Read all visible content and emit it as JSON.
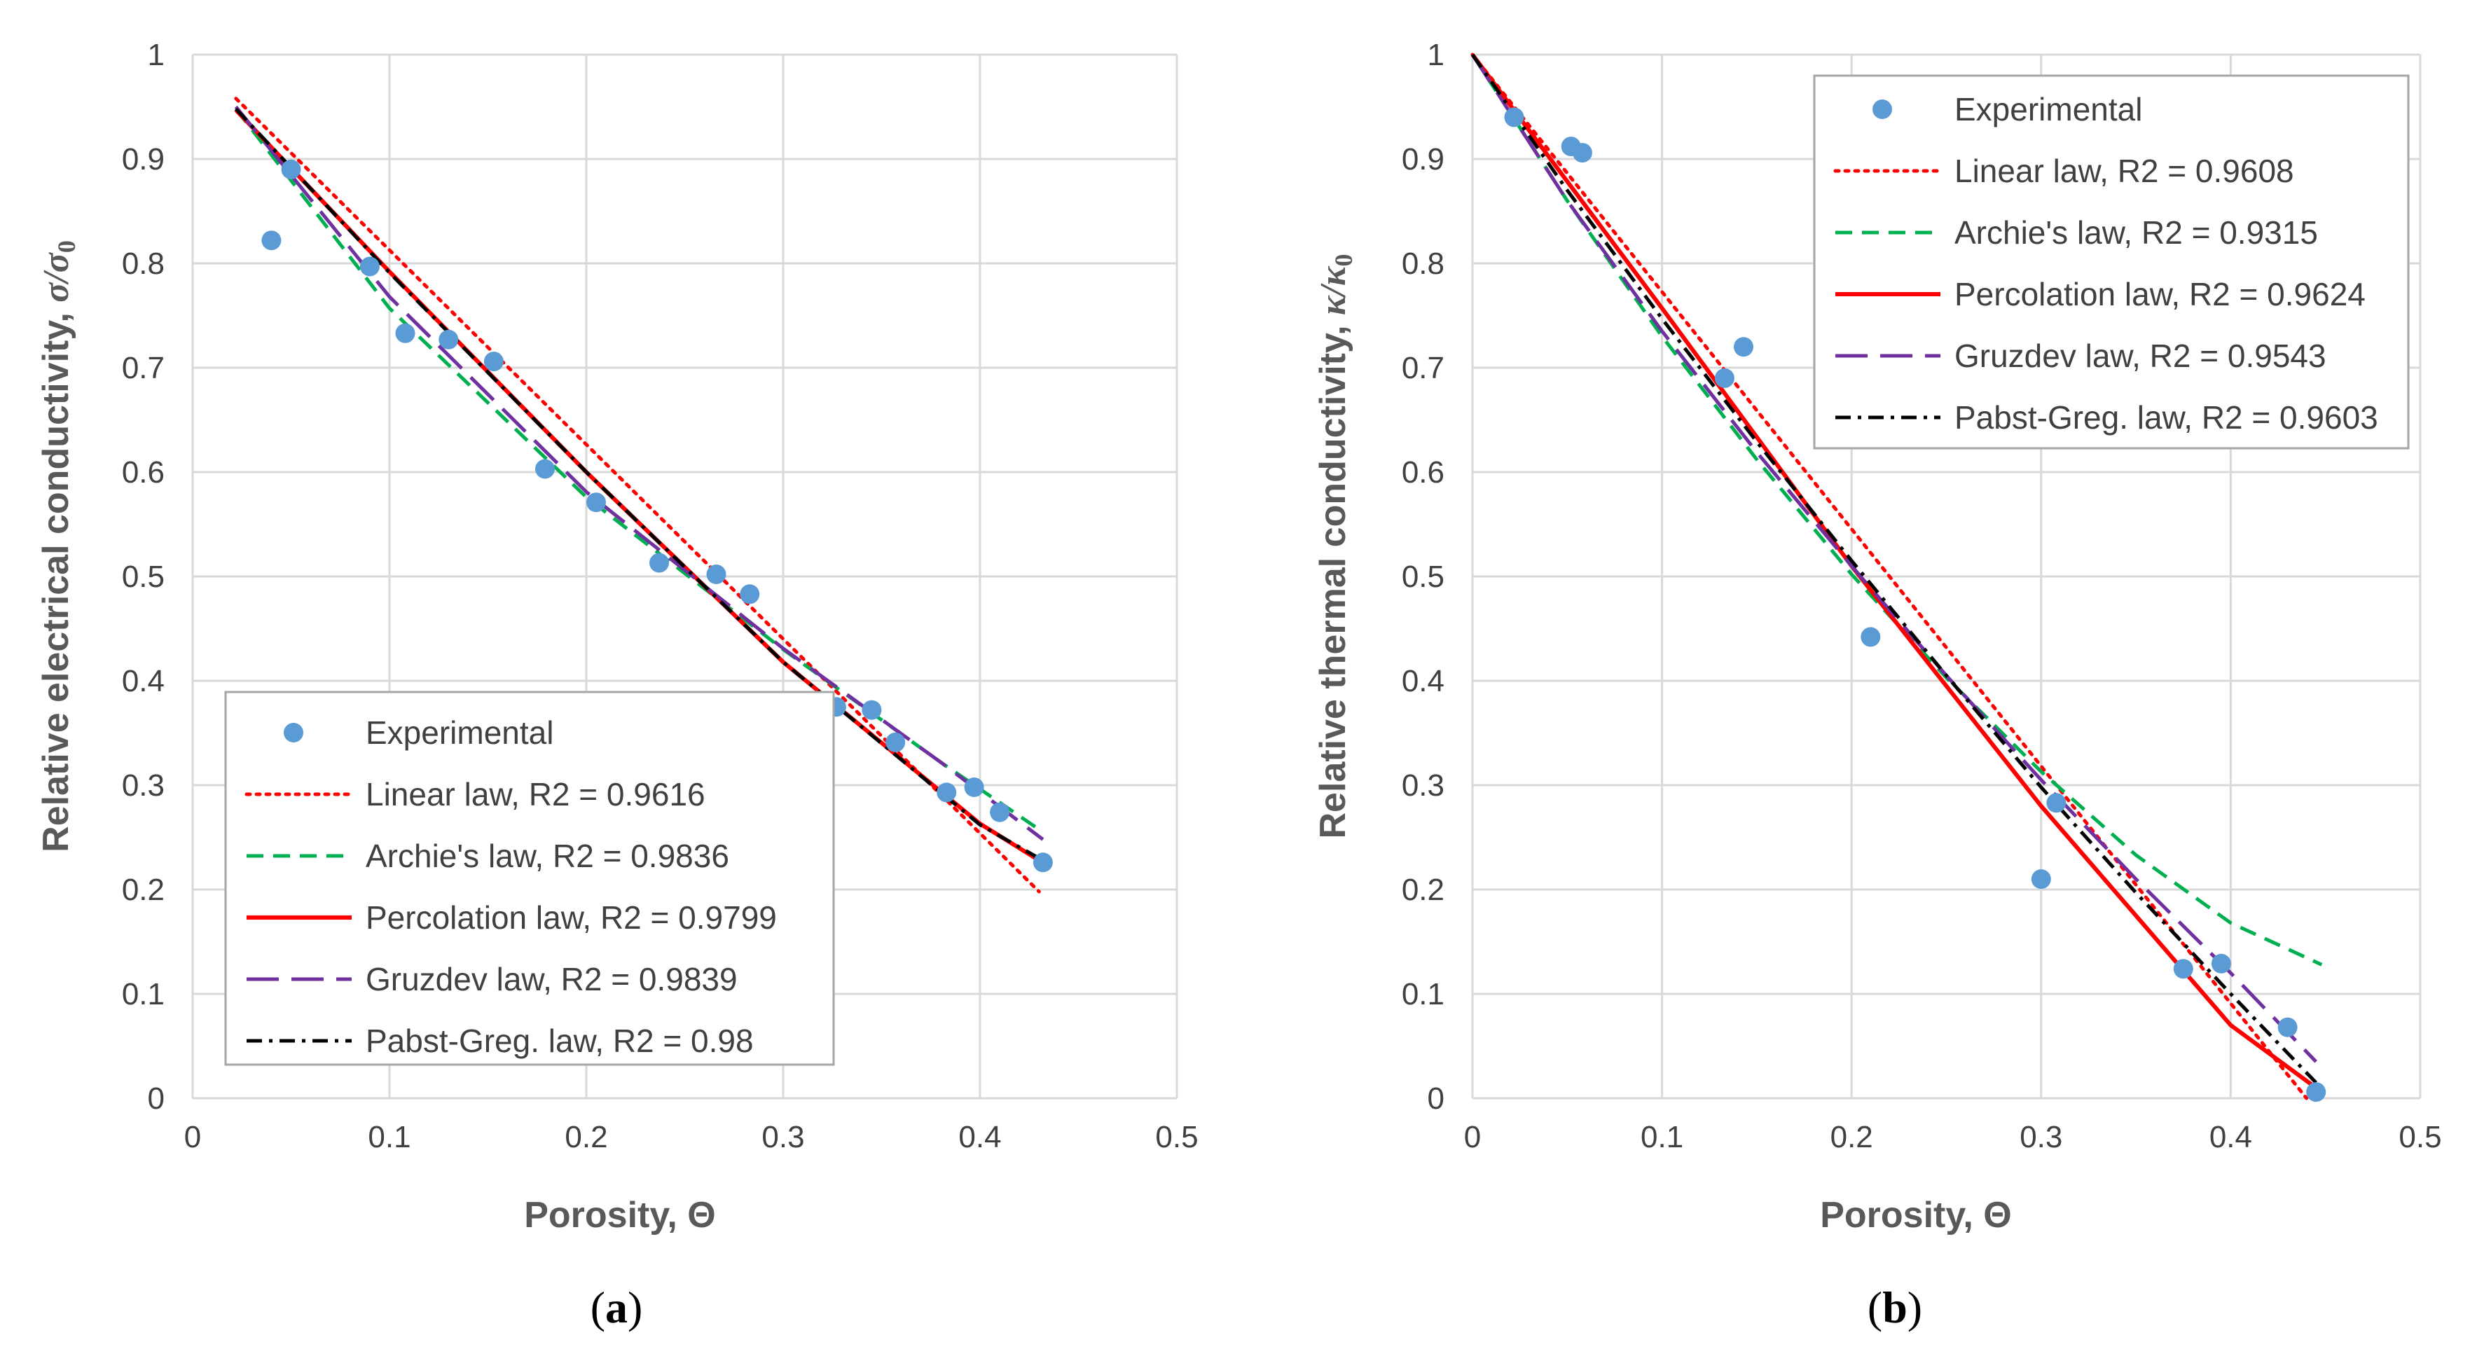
{
  "chart_data": [
    {
      "type": "line",
      "panel": "a",
      "xlabel": "Porosity, Θ",
      "ylabel_prefix": "Relative electrical conductivity, ",
      "ylabel_symbol": "σ/σ",
      "ylabel_sub": "0",
      "xlim": [
        0,
        0.5
      ],
      "ylim": [
        0,
        1
      ],
      "xticks": [
        "0",
        "0.1",
        "0.2",
        "0.3",
        "0.4",
        "0.5"
      ],
      "yticks": [
        "0",
        "0.1",
        "0.2",
        "0.3",
        "0.4",
        "0.5",
        "0.6",
        "0.7",
        "0.8",
        "0.9",
        "1"
      ],
      "grid": true,
      "legend_position": "bottom-left",
      "experimental": {
        "name": "Experimental",
        "color": "#5B9BD5",
        "x": [
          0.04,
          0.05,
          0.09,
          0.108,
          0.13,
          0.153,
          0.179,
          0.205,
          0.237,
          0.266,
          0.283,
          0.327,
          0.345,
          0.357,
          0.383,
          0.397,
          0.41,
          0.432
        ],
        "y": [
          0.822,
          0.89,
          0.797,
          0.733,
          0.727,
          0.706,
          0.603,
          0.571,
          0.513,
          0.502,
          0.483,
          0.375,
          0.372,
          0.341,
          0.293,
          0.298,
          0.274,
          0.226
        ]
      },
      "series": [
        {
          "name": "Linear law, R2 = 0.9616",
          "color": "#FF0000",
          "style": "dotted",
          "x": [
            0.022,
            0.43
          ],
          "y": [
            0.958,
            0.198
          ]
        },
        {
          "name": "Archie's law, R2 = 0.9836",
          "color": "#00B050",
          "style": "dashed",
          "x": [
            0.022,
            0.1,
            0.2,
            0.3,
            0.38,
            0.432
          ],
          "y": [
            0.948,
            0.757,
            0.576,
            0.43,
            0.322,
            0.255
          ]
        },
        {
          "name": "Percolation law, R2 = 0.9799",
          "color": "#FF0000",
          "style": "solid",
          "x": [
            0.022,
            0.1,
            0.2,
            0.3,
            0.4,
            0.43
          ],
          "y": [
            0.947,
            0.792,
            0.6,
            0.418,
            0.263,
            0.228
          ]
        },
        {
          "name": "Gruzdev law, R2 = 0.9839",
          "color": "#7030A0",
          "style": "longdash",
          "x": [
            0.022,
            0.1,
            0.2,
            0.3,
            0.38,
            0.432
          ],
          "y": [
            0.95,
            0.768,
            0.581,
            0.431,
            0.322,
            0.248
          ]
        },
        {
          "name": "Pabst-Greg. law, R2 = 0.98",
          "color": "#000000",
          "style": "dashdot",
          "x": [
            0.022,
            0.1,
            0.2,
            0.3,
            0.4,
            0.43
          ],
          "y": [
            0.948,
            0.791,
            0.6,
            0.418,
            0.262,
            0.23
          ]
        }
      ]
    },
    {
      "type": "line",
      "panel": "b",
      "xlabel": "Porosity, Θ",
      "ylabel_prefix": "Relative thermal conductivity, ",
      "ylabel_symbol": "κ/κ",
      "ylabel_sub": "0",
      "xlim": [
        0,
        0.5
      ],
      "ylim": [
        0,
        1
      ],
      "xticks": [
        "0",
        "0.1",
        "0.2",
        "0.3",
        "0.4",
        "0.5"
      ],
      "yticks": [
        "0",
        "0.1",
        "0.2",
        "0.3",
        "0.4",
        "0.5",
        "0.6",
        "0.7",
        "0.8",
        "0.9",
        "1"
      ],
      "grid": true,
      "legend_position": "top-right",
      "experimental": {
        "name": "Experimental",
        "color": "#5B9BD5",
        "x": [
          0.022,
          0.052,
          0.058,
          0.133,
          0.143,
          0.21,
          0.3,
          0.308,
          0.375,
          0.395,
          0.43,
          0.445
        ],
        "y": [
          0.94,
          0.912,
          0.906,
          0.69,
          0.72,
          0.442,
          0.21,
          0.283,
          0.124,
          0.129,
          0.068,
          0.006
        ]
      },
      "series": [
        {
          "name": "Linear law, R2 = 0.9608",
          "color": "#FF0000",
          "style": "dotted",
          "x": [
            0,
            0.44
          ],
          "y": [
            1,
            0
          ]
        },
        {
          "name": "Archie's law, R2 = 0.9315",
          "color": "#00B050",
          "style": "dashed",
          "x": [
            0,
            0.05,
            0.1,
            0.15,
            0.2,
            0.25,
            0.3,
            0.35,
            0.4,
            0.448
          ],
          "y": [
            1,
            0.86,
            0.73,
            0.612,
            0.502,
            0.403,
            0.313,
            0.233,
            0.168,
            0.128
          ]
        },
        {
          "name": "Percolation law, R2 = 0.9624",
          "color": "#FF0000",
          "style": "solid",
          "x": [
            0,
            0.1,
            0.2,
            0.3,
            0.4,
            0.445
          ],
          "y": [
            1,
            0.757,
            0.51,
            0.28,
            0.07,
            0.01
          ]
        },
        {
          "name": "Gruzdev law, R2 = 0.9543",
          "color": "#7030A0",
          "style": "longdash",
          "x": [
            0,
            0.05,
            0.1,
            0.15,
            0.2,
            0.25,
            0.3,
            0.35,
            0.4,
            0.445
          ],
          "y": [
            1,
            0.86,
            0.735,
            0.619,
            0.51,
            0.405,
            0.305,
            0.21,
            0.12,
            0.035
          ]
        },
        {
          "name": "Pabst-Greg. law, R2 = 0.9603",
          "color": "#000000",
          "style": "dashdot",
          "x": [
            0,
            0.05,
            0.1,
            0.15,
            0.2,
            0.25,
            0.3,
            0.35,
            0.4,
            0.445
          ],
          "y": [
            1,
            0.87,
            0.747,
            0.629,
            0.515,
            0.405,
            0.298,
            0.197,
            0.1,
            0.015
          ]
        }
      ]
    }
  ],
  "captions": {
    "a": "a",
    "b": "b"
  }
}
